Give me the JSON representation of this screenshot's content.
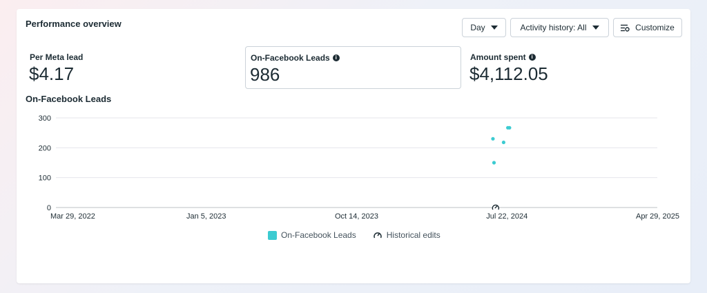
{
  "header": {
    "title": "Performance overview",
    "day_label": "Day",
    "activity_label": "Activity history: All",
    "customize_label": "Customize"
  },
  "metrics": [
    {
      "label": "Per Meta lead",
      "value": "$4.17",
      "info": false
    },
    {
      "label": "On-Facebook Leads",
      "value": "986",
      "info": true
    },
    {
      "label": "Amount spent",
      "value": "$4,112.05",
      "info": true
    }
  ],
  "legend": {
    "leads": "On-Facebook Leads",
    "edits": "Historical edits"
  },
  "colors": {
    "series": "#3ccbd1",
    "grid": "#e4e6eb",
    "text": "#1c2b33"
  },
  "chart_data": {
    "type": "scatter",
    "title": "On-Facebook Leads",
    "xlabel": "",
    "ylabel": "",
    "x_ticks": [
      "Mar 29, 2022",
      "Jan 5, 2023",
      "Oct 14, 2023",
      "Jul 22, 2024",
      "Apr 29, 2025"
    ],
    "y_ticks": [
      0,
      100,
      200,
      300
    ],
    "xlim": [
      "2022-03-29",
      "2025-04-29"
    ],
    "ylim": [
      0,
      300
    ],
    "grid": true,
    "legend_position": "bottom",
    "series": [
      {
        "name": "On-Facebook Leads",
        "color": "#3ccbd1",
        "points": [
          {
            "x": "2024-06-25",
            "y": 230
          },
          {
            "x": "2024-06-27",
            "y": 150
          },
          {
            "x": "2024-07-15",
            "y": 218
          },
          {
            "x": "2024-07-23",
            "y": 267
          },
          {
            "x": "2024-07-26",
            "y": 267
          }
        ]
      }
    ],
    "edit_markers": [
      {
        "x": "2024-06-30"
      }
    ]
  }
}
